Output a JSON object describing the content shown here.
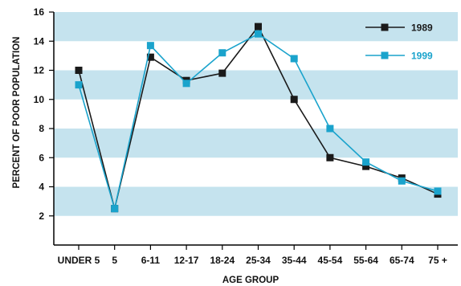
{
  "chart_data": {
    "type": "line",
    "categories": [
      "UNDER 5",
      "5",
      "6-11",
      "12-17",
      "18-24",
      "25-34",
      "35-44",
      "45-54",
      "55-64",
      "65-74",
      "75 +"
    ],
    "series": [
      {
        "name": "1989",
        "color": "#1a1a1a",
        "values": [
          12,
          2.5,
          12.9,
          11.3,
          11.8,
          15,
          10,
          6,
          5.4,
          4.6,
          3.5
        ]
      },
      {
        "name": "1999",
        "color": "#1aa3cc",
        "values": [
          11,
          2.5,
          13.7,
          11.1,
          13.2,
          14.5,
          12.8,
          8,
          5.7,
          4.4,
          3.7
        ]
      }
    ],
    "xlabel": "AGE GROUP",
    "ylabel": "PERCENT OF POOR POPULATION",
    "ylim": [
      0,
      16
    ],
    "yticks": [
      2,
      4,
      6,
      8,
      10,
      12,
      14,
      16
    ],
    "band_color": "#c5e3ee",
    "legend_position": "top-right"
  }
}
